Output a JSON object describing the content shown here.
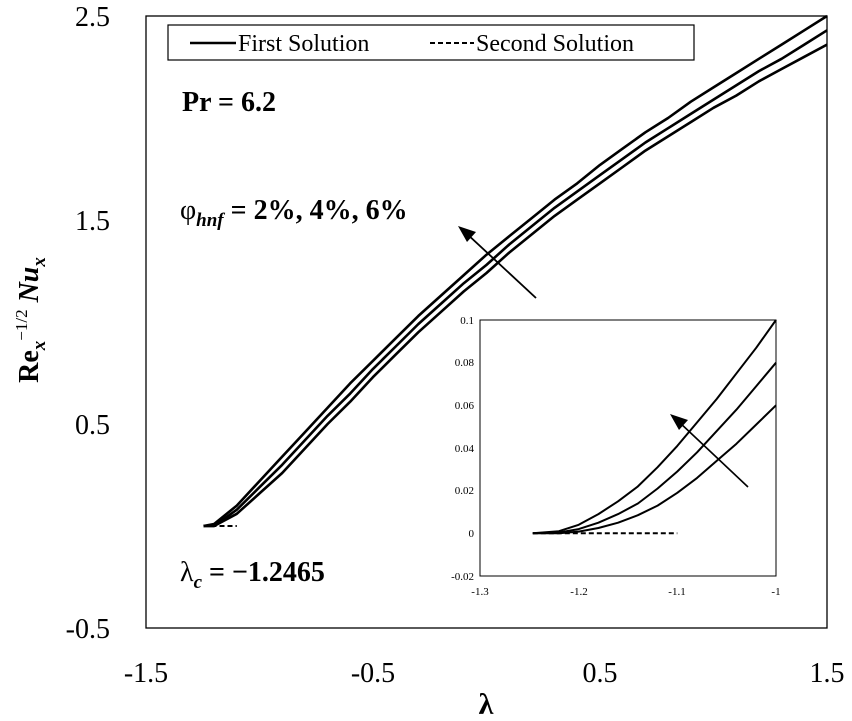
{
  "chart_data": [
    {
      "type": "line",
      "xlabel": "λ",
      "ylabel": {
        "main": "Re",
        "sub": "x",
        "sup": "−1/2",
        "rest": "Nu",
        "rest_sub": "x"
      },
      "xlim": [
        -1.5,
        1.5
      ],
      "ylim": [
        -0.5,
        2.5
      ],
      "xticks": [
        "-1.5",
        "-0.5",
        "0.5",
        "1.5"
      ],
      "yticks": [
        "-0.5",
        "0.5",
        "1.5",
        "2.5"
      ],
      "grid": false,
      "legend": {
        "placement": "top",
        "entries": [
          "First Solution",
          "Second Solution"
        ]
      },
      "series": [
        {
          "group": "φhnf = 2%",
          "style": "solid",
          "x": [
            -1.2465,
            -1.2,
            -1.1,
            -1.0,
            -0.9,
            -0.8,
            -0.7,
            -0.6,
            -0.5,
            -0.4,
            -0.3,
            -0.2,
            -0.1,
            0.0,
            0.1,
            0.2,
            0.3,
            0.4,
            0.5,
            0.6,
            0.7,
            0.8,
            0.9,
            1.0,
            1.1,
            1.2,
            1.3,
            1.4,
            1.5
          ],
          "y": [
            0.0,
            0.0,
            0.06,
            0.16,
            0.26,
            0.38,
            0.5,
            0.61,
            0.73,
            0.84,
            0.95,
            1.05,
            1.15,
            1.24,
            1.34,
            1.43,
            1.52,
            1.6,
            1.68,
            1.76,
            1.84,
            1.91,
            1.98,
            2.05,
            2.11,
            2.18,
            2.24,
            2.3,
            2.36
          ]
        },
        {
          "group": "φhnf = 4%",
          "style": "solid",
          "x": [
            -1.2465,
            -1.2,
            -1.1,
            -1.0,
            -0.9,
            -0.8,
            -0.7,
            -0.6,
            -0.5,
            -0.4,
            -0.3,
            -0.2,
            -0.1,
            0.0,
            0.1,
            0.2,
            0.3,
            0.4,
            0.5,
            0.6,
            0.7,
            0.8,
            0.9,
            1.0,
            1.1,
            1.2,
            1.3,
            1.4,
            1.5
          ],
          "y": [
            0.0,
            0.0,
            0.08,
            0.19,
            0.3,
            0.42,
            0.54,
            0.65,
            0.77,
            0.88,
            0.99,
            1.09,
            1.19,
            1.28,
            1.38,
            1.47,
            1.56,
            1.64,
            1.72,
            1.8,
            1.88,
            1.95,
            2.02,
            2.09,
            2.16,
            2.23,
            2.29,
            2.36,
            2.43
          ]
        },
        {
          "group": "φhnf = 6%",
          "style": "solid",
          "x": [
            -1.2465,
            -1.2,
            -1.1,
            -1.0,
            -0.9,
            -0.8,
            -0.7,
            -0.6,
            -0.5,
            -0.4,
            -0.3,
            -0.2,
            -0.1,
            0.0,
            0.1,
            0.2,
            0.3,
            0.4,
            0.5,
            0.6,
            0.7,
            0.8,
            0.9,
            1.0,
            1.1,
            1.2,
            1.3,
            1.4,
            1.5
          ],
          "y": [
            0.0,
            0.01,
            0.1,
            0.22,
            0.34,
            0.46,
            0.58,
            0.7,
            0.81,
            0.92,
            1.03,
            1.13,
            1.23,
            1.33,
            1.42,
            1.51,
            1.6,
            1.68,
            1.77,
            1.85,
            1.93,
            2.0,
            2.08,
            2.15,
            2.22,
            2.29,
            2.36,
            2.43,
            2.5
          ]
        },
        {
          "group": "second",
          "style": "dashed",
          "x": [
            -1.2465,
            -1.2,
            -1.15,
            -1.1
          ],
          "y": [
            0.0,
            0.0,
            0.0,
            0.0
          ]
        }
      ],
      "annotations": [
        {
          "kind": "pr",
          "text": "Pr = 6.2"
        },
        {
          "kind": "phi",
          "symbol": "φ",
          "sub": "hnf",
          "text": " = 2%, 4%, 6%"
        },
        {
          "kind": "lambda_c",
          "symbol": "λ",
          "sub": "c",
          "text": " = −1.2465"
        }
      ]
    },
    {
      "type": "line",
      "inset": true,
      "xlim": [
        -1.3,
        -1.0
      ],
      "ylim": [
        -0.02,
        0.1
      ],
      "xticks": [
        "-1.3",
        "-1.2",
        "-1.1",
        "-1"
      ],
      "yticks": [
        "-0.02",
        "0",
        "0.02",
        "0.04",
        "0.06",
        "0.08",
        "0.1"
      ],
      "series": [
        {
          "group": "φhnf = 2%",
          "style": "solid",
          "x": [
            -1.2465,
            -1.22,
            -1.2,
            -1.18,
            -1.16,
            -1.14,
            -1.12,
            -1.1,
            -1.08,
            -1.06,
            -1.04,
            -1.02,
            -1.0
          ],
          "y": [
            0.0,
            0.0,
            0.0008,
            0.0025,
            0.005,
            0.0085,
            0.013,
            0.019,
            0.026,
            0.034,
            0.042,
            0.051,
            0.06
          ]
        },
        {
          "group": "φhnf = 4%",
          "style": "solid",
          "x": [
            -1.2465,
            -1.22,
            -1.2,
            -1.18,
            -1.16,
            -1.14,
            -1.12,
            -1.1,
            -1.08,
            -1.06,
            -1.04,
            -1.02,
            -1.0
          ],
          "y": [
            0.0,
            0.0004,
            0.002,
            0.005,
            0.009,
            0.014,
            0.021,
            0.029,
            0.038,
            0.048,
            0.058,
            0.069,
            0.08
          ]
        },
        {
          "group": "φhnf = 6%",
          "style": "solid",
          "x": [
            -1.2465,
            -1.22,
            -1.2,
            -1.18,
            -1.16,
            -1.14,
            -1.12,
            -1.1,
            -1.08,
            -1.06,
            -1.04,
            -1.02,
            -1.0
          ],
          "y": [
            0.0,
            0.001,
            0.004,
            0.009,
            0.015,
            0.022,
            0.031,
            0.041,
            0.052,
            0.063,
            0.075,
            0.087,
            0.1
          ]
        },
        {
          "group": "second",
          "style": "dashed",
          "x": [
            -1.2465,
            -1.2,
            -1.15,
            -1.1
          ],
          "y": [
            0.0,
            0.0,
            0.0,
            0.0
          ]
        }
      ]
    }
  ]
}
